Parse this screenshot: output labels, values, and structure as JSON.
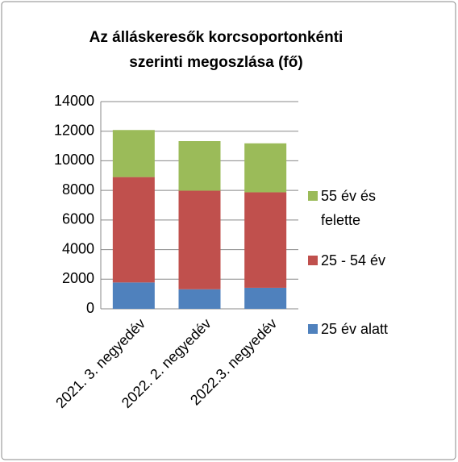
{
  "chart_data": {
    "type": "stacked_bar",
    "title": [
      "Az álláskeresők korcsoportonkénti",
      "szerinti megoszlása (fő)"
    ],
    "categories": [
      "2021. 3. negyedév",
      "2022. 2. negyedév",
      "2022.3. negyedév"
    ],
    "series": [
      {
        "name": "25 év alatt",
        "color": "#4f81bd",
        "values": [
          1780,
          1320,
          1420
        ]
      },
      {
        "name": "25 - 54 év",
        "color": "#c0504d",
        "values": [
          7120,
          6660,
          6450
        ]
      },
      {
        "name": "55 év és felette",
        "color": "#9bbb59",
        "values": [
          3180,
          3350,
          3310
        ]
      }
    ],
    "ylim": [
      0,
      14000
    ],
    "yticks": [
      0,
      2000,
      4000,
      6000,
      8000,
      10000,
      12000,
      14000
    ],
    "grid": true,
    "legend": "right"
  }
}
